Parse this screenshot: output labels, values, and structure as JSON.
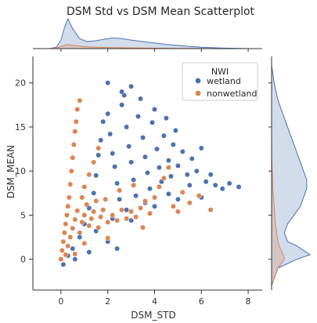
{
  "chart_data": {
    "type": "scatter",
    "title": "DSM Std vs DSM Mean Scatterplot",
    "xlabel": "DSM_STD",
    "ylabel": "DSM_MEAN",
    "xlim": [
      -1.2,
      8.6
    ],
    "ylim": [
      -3.5,
      23
    ],
    "xticks": [
      0,
      2,
      4,
      6,
      8
    ],
    "yticks": [
      0,
      5,
      10,
      15,
      20
    ],
    "grid": false,
    "legend": {
      "title": "NWI",
      "placement": "top-right",
      "entries": [
        "wetland",
        "nonwetland"
      ]
    },
    "series": [
      {
        "name": "wetland",
        "color": "#4c72b0",
        "points": [
          [
            0.1,
            -0.6
          ],
          [
            0.3,
            0.4
          ],
          [
            0.5,
            1.2
          ],
          [
            0.8,
            2.5
          ],
          [
            1.0,
            4.0
          ],
          [
            1.2,
            5.8
          ],
          [
            1.4,
            7.5
          ],
          [
            1.5,
            9.5
          ],
          [
            1.6,
            11.8
          ],
          [
            1.7,
            13.5
          ],
          [
            1.8,
            15.6
          ],
          [
            2.0,
            16.5
          ],
          [
            2.1,
            14.2
          ],
          [
            2.2,
            12.0
          ],
          [
            2.3,
            10.5
          ],
          [
            2.4,
            8.6
          ],
          [
            2.5,
            6.8
          ],
          [
            2.6,
            17.5
          ],
          [
            2.7,
            18.6
          ],
          [
            2.8,
            15.0
          ],
          [
            2.9,
            12.8
          ],
          [
            3.0,
            11.0
          ],
          [
            3.1,
            9.0
          ],
          [
            3.2,
            7.2
          ],
          [
            3.3,
            16.2
          ],
          [
            3.4,
            18.2
          ],
          [
            3.5,
            13.8
          ],
          [
            3.6,
            11.6
          ],
          [
            3.7,
            9.8
          ],
          [
            3.8,
            8.0
          ],
          [
            3.9,
            15.5
          ],
          [
            4.0,
            17.0
          ],
          [
            4.1,
            12.5
          ],
          [
            4.2,
            10.4
          ],
          [
            4.3,
            8.8
          ],
          [
            4.4,
            14.0
          ],
          [
            4.5,
            16.0
          ],
          [
            4.6,
            11.2
          ],
          [
            4.7,
            9.4
          ],
          [
            4.8,
            13.0
          ],
          [
            4.9,
            14.6
          ],
          [
            5.0,
            10.6
          ],
          [
            5.2,
            12.2
          ],
          [
            5.4,
            9.6
          ],
          [
            5.6,
            11.4
          ],
          [
            5.8,
            10.0
          ],
          [
            6.0,
            12.6
          ],
          [
            6.2,
            8.8
          ],
          [
            6.4,
            9.6
          ],
          [
            6.6,
            8.4
          ],
          [
            6.9,
            8.0
          ],
          [
            7.2,
            8.6
          ],
          [
            7.6,
            8.2
          ],
          [
            2.0,
            20.0
          ],
          [
            2.6,
            19.0
          ],
          [
            3.0,
            19.6
          ],
          [
            1.5,
            3.2
          ],
          [
            2.0,
            2.0
          ],
          [
            3.0,
            4.4
          ],
          [
            4.0,
            6.0
          ],
          [
            5.0,
            6.8
          ],
          [
            6.0,
            7.0
          ],
          [
            0.6,
            0.0
          ],
          [
            1.2,
            0.8
          ],
          [
            2.4,
            1.2
          ],
          [
            2.2,
            4.6
          ],
          [
            2.8,
            5.6
          ],
          [
            3.6,
            6.4
          ],
          [
            4.6,
            7.4
          ],
          [
            5.5,
            8.4
          ]
        ]
      },
      {
        "name": "nonwetland",
        "color": "#dd8452",
        "points": [
          [
            0.0,
            0.0
          ],
          [
            0.05,
            1.0
          ],
          [
            0.1,
            2.0
          ],
          [
            0.15,
            3.0
          ],
          [
            0.2,
            4.0
          ],
          [
            0.25,
            5.0
          ],
          [
            0.3,
            6.0
          ],
          [
            0.35,
            7.0
          ],
          [
            0.4,
            8.5
          ],
          [
            0.45,
            10.0
          ],
          [
            0.5,
            11.5
          ],
          [
            0.55,
            13.0
          ],
          [
            0.6,
            14.5
          ],
          [
            0.65,
            15.6
          ],
          [
            0.7,
            17.0
          ],
          [
            0.8,
            18.0
          ],
          [
            0.2,
            0.5
          ],
          [
            0.3,
            1.5
          ],
          [
            0.4,
            2.5
          ],
          [
            0.5,
            3.5
          ],
          [
            0.6,
            4.5
          ],
          [
            0.7,
            5.5
          ],
          [
            0.8,
            3.0
          ],
          [
            0.9,
            4.2
          ],
          [
            1.0,
            5.0
          ],
          [
            1.1,
            6.2
          ],
          [
            1.2,
            3.8
          ],
          [
            1.3,
            4.6
          ],
          [
            1.4,
            5.4
          ],
          [
            1.5,
            6.6
          ],
          [
            1.6,
            3.6
          ],
          [
            1.7,
            4.8
          ],
          [
            1.8,
            5.6
          ],
          [
            1.9,
            6.8
          ],
          [
            2.0,
            4.2
          ],
          [
            2.2,
            5.0
          ],
          [
            2.4,
            4.4
          ],
          [
            2.6,
            5.6
          ],
          [
            2.8,
            4.6
          ],
          [
            3.0,
            5.4
          ],
          [
            3.2,
            4.8
          ],
          [
            3.4,
            5.8
          ],
          [
            3.6,
            6.6
          ],
          [
            3.8,
            5.2
          ],
          [
            4.0,
            7.0
          ],
          [
            4.2,
            8.2
          ],
          [
            4.4,
            9.2
          ],
          [
            4.6,
            10.4
          ],
          [
            4.8,
            6.0
          ],
          [
            5.0,
            5.4
          ],
          [
            5.2,
            7.6
          ],
          [
            5.5,
            6.4
          ],
          [
            5.9,
            7.2
          ],
          [
            6.4,
            5.6
          ],
          [
            1.0,
            8.2
          ],
          [
            1.2,
            9.6
          ],
          [
            1.4,
            11.0
          ],
          [
            1.6,
            12.6
          ],
          [
            0.9,
            7.0
          ],
          [
            2.5,
            7.8
          ],
          [
            3.1,
            8.4
          ],
          [
            3.5,
            3.6
          ],
          [
            2.0,
            2.4
          ],
          [
            1.0,
            1.8
          ],
          [
            0.6,
            0.6
          ]
        ]
      }
    ],
    "marginals": {
      "x_kde": {
        "x": [
          -1.0,
          -0.5,
          -0.2,
          0.0,
          0.15,
          0.3,
          0.5,
          0.8,
          1.1,
          1.5,
          1.8,
          2.2,
          2.6,
          3.0,
          3.5,
          4.0,
          4.5,
          5.0,
          5.5,
          6.0,
          6.5,
          7.0,
          7.5,
          8.0
        ],
        "wetland": [
          0.0,
          0.0,
          0.02,
          0.12,
          0.3,
          0.42,
          0.28,
          0.14,
          0.1,
          0.11,
          0.13,
          0.15,
          0.14,
          0.12,
          0.1,
          0.08,
          0.06,
          0.045,
          0.03,
          0.02,
          0.012,
          0.007,
          0.004,
          0.0
        ],
        "nonwetland": [
          0.0,
          0.0,
          0.01,
          0.03,
          0.05,
          0.055,
          0.045,
          0.035,
          0.025,
          0.02,
          0.018,
          0.014,
          0.012,
          0.01,
          0.008,
          0.006,
          0.005,
          0.003,
          0.002,
          0.001,
          0.0,
          0.0,
          0.0,
          0.0
        ]
      },
      "y_kde": {
        "y": [
          -3.0,
          -1.0,
          0.0,
          0.5,
          1.0,
          1.5,
          2.0,
          3.0,
          4.0,
          5.0,
          6.0,
          7.0,
          8.0,
          9.0,
          10.0,
          11.0,
          12.0,
          14.0,
          16.0,
          18.0,
          20.0,
          22.0
        ],
        "wetland": [
          0.0,
          0.01,
          0.04,
          0.06,
          0.05,
          0.04,
          0.025,
          0.02,
          0.025,
          0.035,
          0.045,
          0.05,
          0.055,
          0.055,
          0.05,
          0.045,
          0.04,
          0.03,
          0.02,
          0.01,
          0.004,
          0.0
        ],
        "nonwetland": [
          0.0,
          0.01,
          0.02,
          0.018,
          0.015,
          0.012,
          0.01,
          0.008,
          0.006,
          0.005,
          0.004,
          0.003,
          0.002,
          0.0015,
          0.001,
          0.0005,
          0.0003,
          0.0,
          0.0,
          0.0,
          0.0,
          0.0
        ]
      }
    }
  }
}
